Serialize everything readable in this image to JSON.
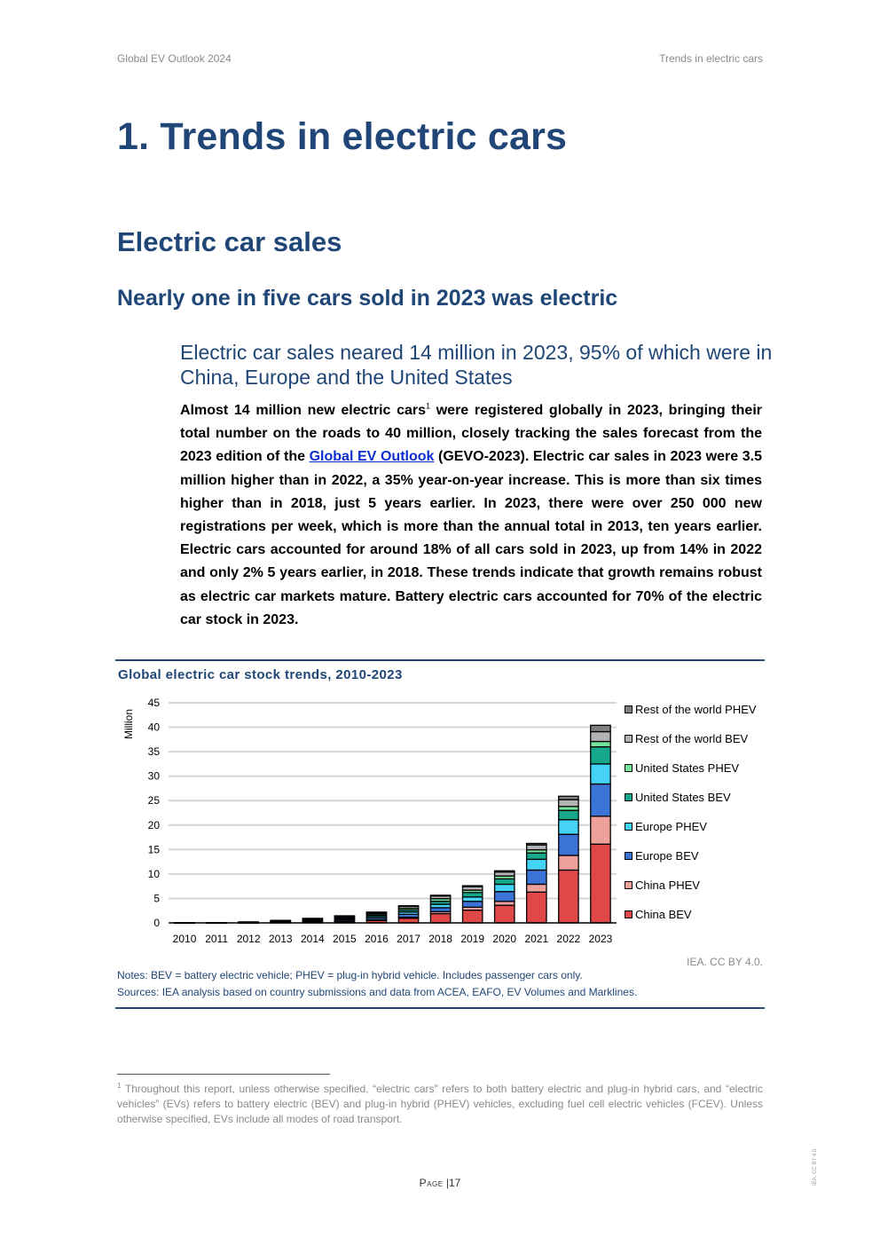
{
  "header": {
    "left": "Global EV Outlook 2024",
    "right": "Trends in electric cars"
  },
  "chapter_title": "1. Trends in electric cars",
  "section_title": "Electric car sales",
  "subsection_title": "Nearly one in five cars sold in 2023 was electric",
  "lead": "Electric car sales neared 14 million in 2023, 95% of which were in China, Europe and the United States",
  "body": {
    "p1": "Almost 14 million new electric cars",
    "footnote_ref": "1",
    "p2": " were registered globally in 2023, bringing their total number on the roads to 40 million, closely tracking the sales forecast from the 2023 edition of the ",
    "link_text": "Global EV Outlook",
    "p3": " (GEVO-2023). Electric car sales in 2023 were 3.5 million higher than in 2022, a 35% year-on-year increase. This is more than six times higher than in 2018, just 5 years earlier. In 2023, there were over 250 000 new registrations per week, which is more than the annual total in 2013, ten years earlier. Electric cars accounted for around 18% of all cars sold in 2023, up from 14% in 2022 and only 2% 5 years earlier, in 2018. These trends indicate that growth remains robust as electric car markets mature. Battery electric cars accounted for 70% of the electric car stock in 2023."
  },
  "figure": {
    "title": "Global electric car stock trends, 2010-2023",
    "credit": "IEA. CC BY 4.0.",
    "notes": "Notes: BEV = battery electric vehicle; PHEV = plug-in hybrid vehicle. Includes passenger cars only.",
    "sources": "Sources: IEA analysis based on country submissions and data from ACEA, EAFO, EV Volumes and Marklines."
  },
  "legend": [
    {
      "label": "Rest of the world PHEV",
      "color": "#808080"
    },
    {
      "label": "Rest of the world BEV",
      "color": "#b3b3b3"
    },
    {
      "label": "United States PHEV",
      "color": "#76e39a"
    },
    {
      "label": "United States BEV",
      "color": "#17a88c"
    },
    {
      "label": "Europe PHEV",
      "color": "#44d2f5"
    },
    {
      "label": "Europe BEV",
      "color": "#3c73d6"
    },
    {
      "label": "China PHEV",
      "color": "#eea19b"
    },
    {
      "label": "China BEV",
      "color": "#e04848"
    }
  ],
  "chart_data": {
    "type": "bar",
    "stacked": true,
    "title": "Global electric car stock trends, 2010-2023",
    "ylabel": "Million",
    "xlabel": "",
    "ylim": [
      0,
      45
    ],
    "yticks": [
      0,
      5,
      10,
      15,
      20,
      25,
      30,
      35,
      40,
      45
    ],
    "grid": true,
    "legend_position": "right",
    "categories": [
      "2010",
      "2011",
      "2012",
      "2013",
      "2014",
      "2015",
      "2016",
      "2017",
      "2018",
      "2019",
      "2020",
      "2021",
      "2022",
      "2023"
    ],
    "series": [
      {
        "name": "China BEV",
        "color": "#e04848",
        "values": [
          0.01,
          0.02,
          0.04,
          0.1,
          0.2,
          0.25,
          0.5,
          0.95,
          1.9,
          2.6,
          3.6,
          6.3,
          10.8,
          16.1
        ]
      },
      {
        "name": "China PHEV",
        "color": "#eea19b",
        "values": [
          0,
          0,
          0,
          0.01,
          0.02,
          0.05,
          0.1,
          0.2,
          0.4,
          0.6,
          0.8,
          1.6,
          3.0,
          5.7
        ]
      },
      {
        "name": "Europe BEV",
        "color": "#3c73d6",
        "values": [
          0.01,
          0.01,
          0.03,
          0.1,
          0.15,
          0.3,
          0.4,
          0.6,
          0.8,
          1.2,
          2.0,
          2.9,
          4.3,
          6.6
        ]
      },
      {
        "name": "Europe PHEV",
        "color": "#44d2f5",
        "values": [
          0,
          0,
          0.02,
          0.05,
          0.1,
          0.2,
          0.3,
          0.5,
          0.7,
          0.9,
          1.5,
          2.2,
          3.0,
          4.1
        ]
      },
      {
        "name": "United States BEV",
        "color": "#17a88c",
        "values": [
          0,
          0.01,
          0.03,
          0.08,
          0.15,
          0.2,
          0.3,
          0.4,
          0.6,
          0.9,
          1.1,
          1.3,
          1.9,
          3.5
        ]
      },
      {
        "name": "United States PHEV",
        "color": "#76e39a",
        "values": [
          0,
          0.01,
          0.04,
          0.1,
          0.17,
          0.2,
          0.28,
          0.35,
          0.55,
          0.5,
          0.6,
          0.65,
          0.8,
          1.1
        ]
      },
      {
        "name": "Rest of the world BEV",
        "color": "#b3b3b3",
        "values": [
          0.01,
          0.01,
          0.02,
          0.05,
          0.1,
          0.2,
          0.25,
          0.4,
          0.55,
          0.7,
          0.8,
          1.0,
          1.4,
          2.0
        ]
      },
      {
        "name": "Rest of the world PHEV",
        "color": "#808080",
        "values": [
          0,
          0,
          0.01,
          0.02,
          0.03,
          0.05,
          0.08,
          0.1,
          0.15,
          0.2,
          0.25,
          0.3,
          0.7,
          1.3
        ]
      }
    ]
  },
  "footnote": {
    "marker": "1",
    "text": " Throughout this report, unless otherwise specified, “electric cars” refers to both battery electric and plug-in hybrid cars, and “electric vehicles” (EVs) refers to battery electric (BEV) and plug-in hybrid (PHEV) vehicles, excluding fuel cell electric vehicles (FCEV). Unless otherwise specified, EVs include all modes of road transport."
  },
  "page": {
    "label": "Page",
    "separator": "|",
    "number": "17"
  },
  "side_credit": "IEA. CC BY 4.0."
}
